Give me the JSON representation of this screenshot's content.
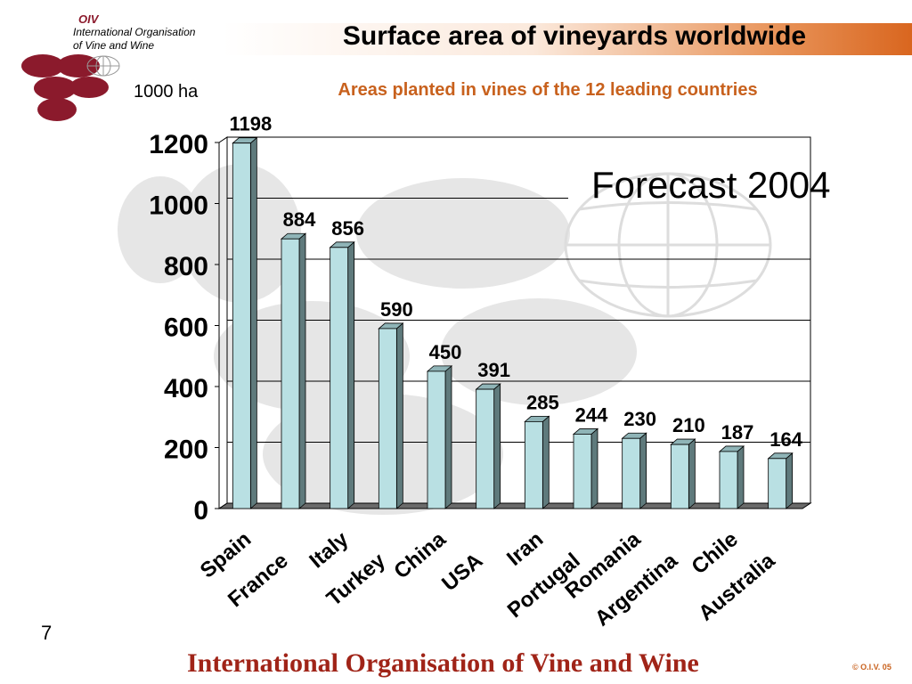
{
  "header": {
    "org_abbr": "OIV",
    "org_line1": "International Organisation",
    "org_line2": "of  Vine  and  Wine",
    "title": "Surface area of vineyards worldwide"
  },
  "slide": {
    "page_number": "7",
    "footer": "International Organisation of Vine and Wine",
    "copyright": "© O.I.V. 05",
    "forecast_label": "Forecast 2004"
  },
  "colors": {
    "bar_front": "#b9e0e3",
    "bar_side": "#5f7a7c",
    "bar_top": "#8fb4b7",
    "logo": "#8b1a2c",
    "accent": "#c8611d"
  },
  "chart_data": {
    "type": "bar",
    "title": "Areas planted in vines of the 12 leading countries",
    "ylabel": "1000 ha",
    "categories": [
      "Spain",
      "France",
      "Italy",
      "Turkey",
      "China",
      "USA",
      "Iran",
      "Portugal",
      "Romania",
      "Argentina",
      "Chile",
      "Australia"
    ],
    "values": [
      1198,
      884,
      856,
      590,
      450,
      391,
      285,
      244,
      230,
      210,
      187,
      164
    ],
    "ylim": [
      0,
      1200
    ],
    "yticks": [
      0,
      200,
      400,
      600,
      800,
      1000,
      1200
    ],
    "grid": true,
    "legend": "none"
  }
}
